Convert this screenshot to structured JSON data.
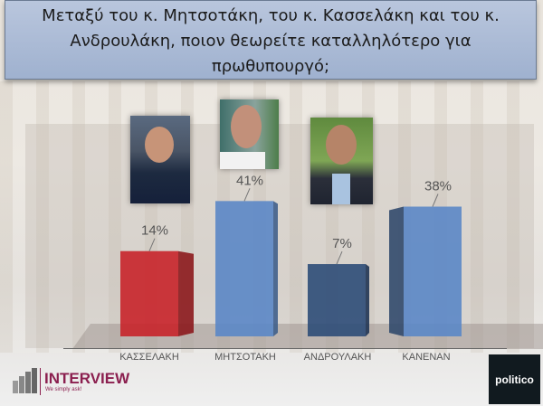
{
  "question": {
    "line1": "Μεταξύ του κ. Μητσοτάκη, του κ. Κασσελάκη και του κ.",
    "line2": "Ανδρουλάκη, ποιον θεωρείτε καταλληλότερο για",
    "line3": "πρωθυπουργό;"
  },
  "chart_data": {
    "type": "bar",
    "title": "Μεταξύ του κ. Μητσοτάκη, του κ. Κασσελάκη και του κ. Ανδρουλάκη, ποιον θεωρείτε καταλληλότερο για πρωθυπουργό;",
    "categories": [
      "ΚΑΣΣΕΛΑΚΗ",
      "ΜΗΤΣΟΤΑΚΗ",
      "ΑΝΔΡΟΥΛΑΚΗ",
      "ΚΑΝΕΝΑΝ"
    ],
    "values": [
      14,
      41,
      7,
      38
    ],
    "labels": [
      "14%",
      "41%",
      "7%",
      "38%"
    ],
    "unit": "%",
    "colors": [
      "#c8232a",
      "#5b87c6",
      "#2e4c78",
      "#5b87c6"
    ],
    "style": "3d-bar",
    "grid": false,
    "legend": "none"
  },
  "logos": {
    "interview": "INTERVIEW",
    "interview_tagline": "We simply ask!",
    "politico": "politico"
  }
}
